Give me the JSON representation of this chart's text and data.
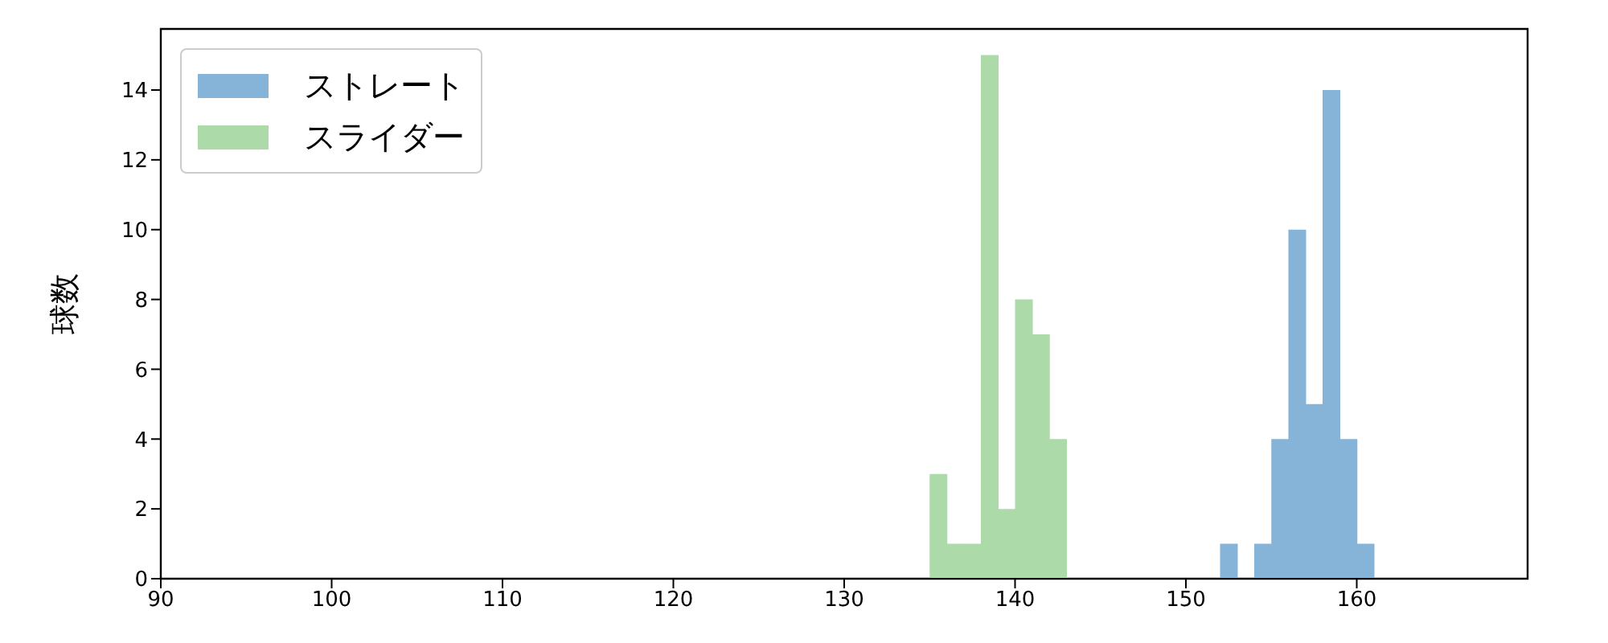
{
  "chart_data": {
    "type": "histogram",
    "ylabel": "球数",
    "xlim": [
      90,
      170
    ],
    "xticks": [
      90,
      100,
      110,
      120,
      130,
      140,
      150,
      160
    ],
    "ylim": [
      0,
      15.75
    ],
    "yticks": [
      0,
      2,
      4,
      6,
      8,
      10,
      12,
      14
    ],
    "legend": "top left",
    "bins": [
      135,
      136,
      137,
      138,
      139,
      140,
      141,
      142,
      143,
      144,
      145,
      146,
      147,
      148,
      149,
      150,
      151,
      152,
      153,
      154,
      155,
      156,
      157,
      158,
      159,
      160,
      161
    ],
    "series": [
      {
        "name": "ストレート",
        "color": "#85b4d8",
        "values": [
          0,
          0,
          0,
          0,
          0,
          0,
          0,
          0,
          0,
          0,
          0,
          0,
          0,
          0,
          0,
          0,
          0,
          1,
          0,
          1,
          4,
          10,
          5,
          14,
          4,
          1
        ]
      },
      {
        "name": "スライダー",
        "color": "#acdaa9",
        "values": [
          3,
          1,
          1,
          15,
          2,
          8,
          7,
          4,
          0,
          0,
          0,
          0,
          0,
          0,
          0,
          0,
          0,
          0,
          0,
          0,
          0,
          0,
          0,
          0,
          0,
          0
        ]
      }
    ]
  }
}
